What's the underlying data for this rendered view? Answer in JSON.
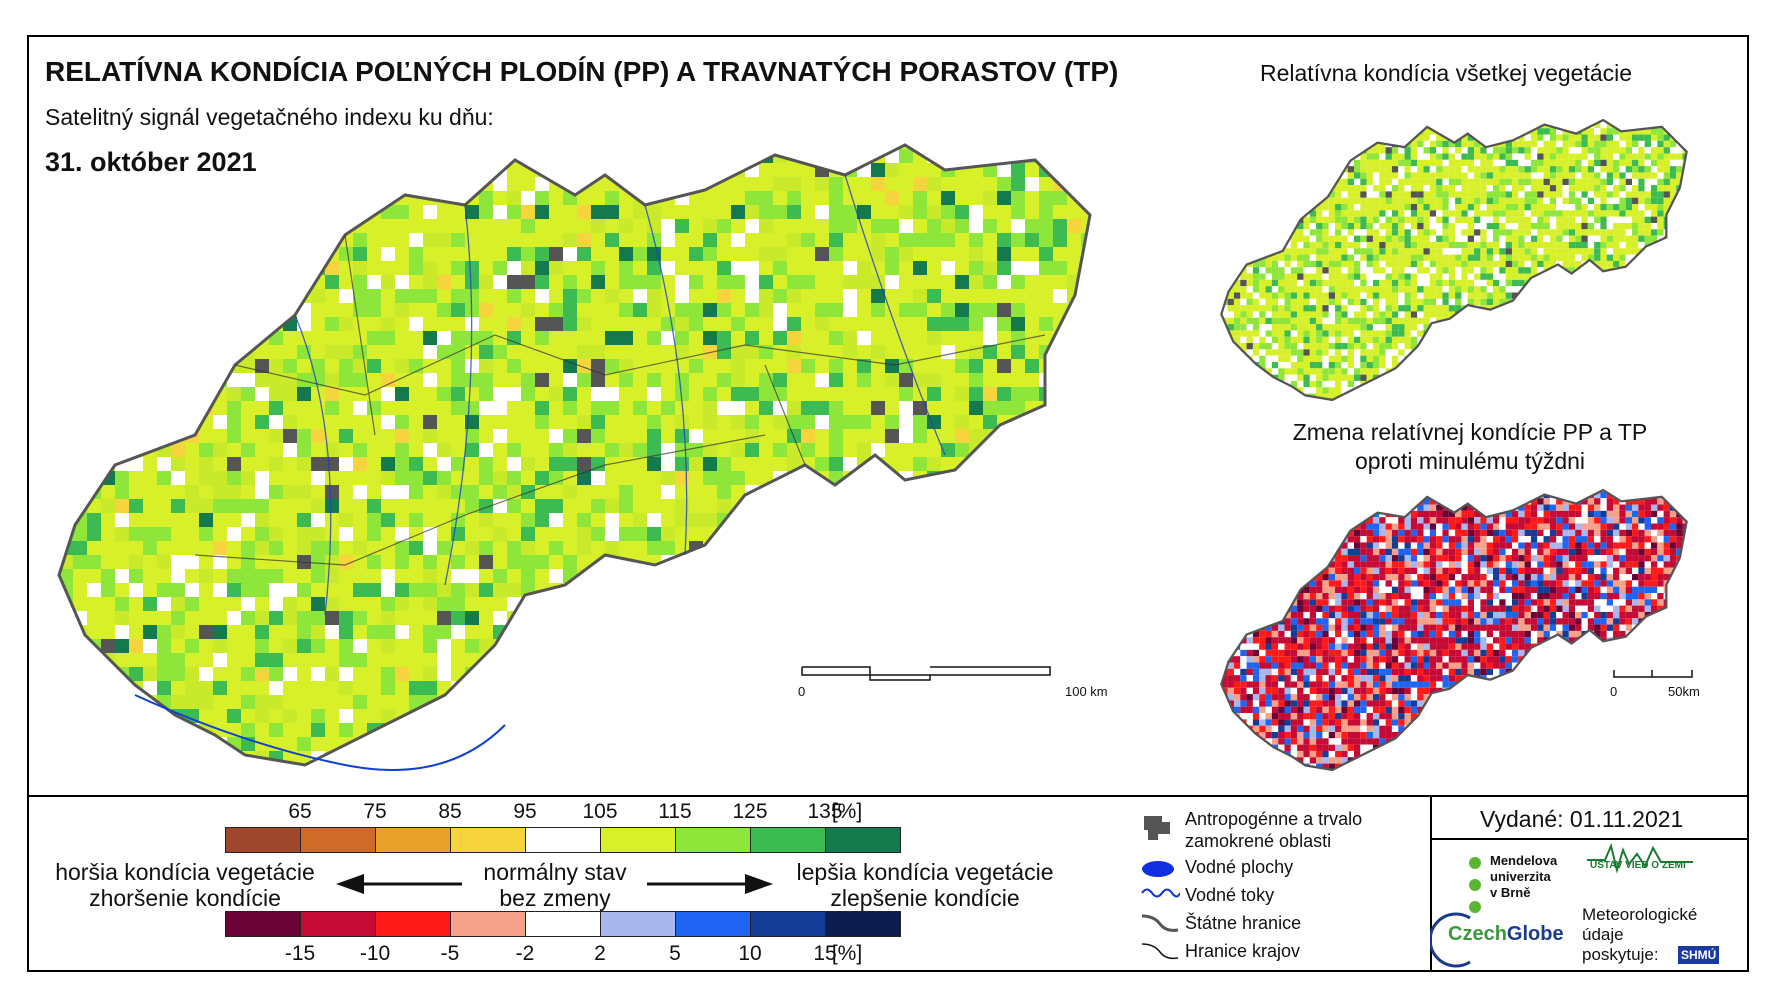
{
  "title": "RELATÍVNA KONDÍCIA POĽNÝCH PLODÍN (PP) A TRAVNATÝCH PORASTOV (TP)",
  "subtitle": "Satelitný signál vegetačného indexu ku dňu:",
  "date": "31. október 2021",
  "right_top_title": "Relatívna kondícia všetkej vegetácie",
  "right_bottom_title_line1": "Zmena relatívnej kondície PP a TP",
  "right_bottom_title_line2": "oproti minulému týždni",
  "scale_main": {
    "zero": "0",
    "end": "100 km"
  },
  "scale_small": {
    "zero": "0",
    "end": "50km"
  },
  "legend_condition": {
    "ticks": [
      "65",
      "75",
      "85",
      "95",
      "105",
      "115",
      "125",
      "135",
      "[%]"
    ],
    "colors": [
      "#a0482d",
      "#cf6a2a",
      "#e8a229",
      "#f6d43c",
      "#ffffff",
      "#d7f02a",
      "#8ee63a",
      "#3dbb53",
      "#147a4d"
    ]
  },
  "legend_change": {
    "ticks": [
      "-15",
      "-10",
      "-5",
      "-2",
      "2",
      "5",
      "10",
      "15",
      "[%]"
    ],
    "colors": [
      "#6a0336",
      "#c50b35",
      "#ff1a1a",
      "#f6a28a",
      "#ffffff",
      "#a8b8ee",
      "#1f64f2",
      "#133d96",
      "#0d1b4f"
    ]
  },
  "worse_label_1": "horšia kondícia vegetácie",
  "worse_label_2": "zhoršenie kondície",
  "normal_label_1": "normálny stav",
  "normal_label_2": "bez zmeny",
  "better_label_1": "lepšia kondícia vegetácie",
  "better_label_2": "zlepšenie kondície",
  "map_legend": {
    "anthropogenic_1": "Antropogénne a trvalo",
    "anthropogenic_2": "zamokrené oblasti",
    "water_areas": "Vodné plochy",
    "water_streams": "Vodné toky",
    "state_borders": "Štátne hranice",
    "region_borders": "Hranice krajov"
  },
  "issued": "Vydané: 01.11.2021",
  "logos": {
    "mendel_1": "Mendelova",
    "mendel_2": "univerzita",
    "mendel_3": "v Brně",
    "czechglobe_a": "Czech",
    "czechglobe_b": "Globe",
    "ustav": "ÚSTAV VIED O ZEMI",
    "met_1": "Meteorologické",
    "met_2": "údaje",
    "met_3": "poskytuje:",
    "shmu": "SHMÚ"
  }
}
